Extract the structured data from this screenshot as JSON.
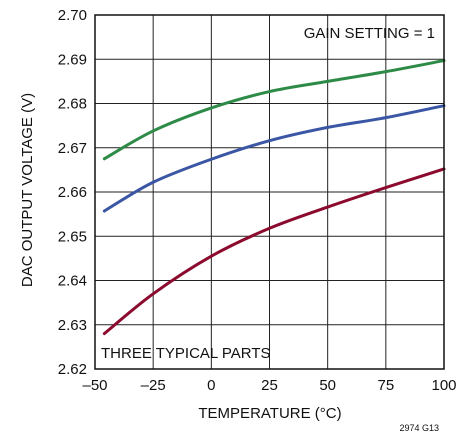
{
  "chart_data": {
    "type": "line",
    "xlabel": "TEMPERATURE (°C)",
    "ylabel": "DAC OUTPUT VOLTAGE (V)",
    "xlim": [
      -50,
      100
    ],
    "ylim": [
      2.62,
      2.7
    ],
    "x_ticks": [
      "–50",
      "–25",
      "0",
      "25",
      "50",
      "75",
      "100"
    ],
    "y_ticks": [
      "2.62",
      "2.63",
      "2.64",
      "2.65",
      "2.66",
      "2.67",
      "2.68",
      "2.69",
      "2.70"
    ],
    "grid": true,
    "annotations": {
      "top_right": "GAIN SETTING = 1",
      "bottom_left": "THREE TYPICAL PARTS"
    },
    "figure_id": "2974 G13",
    "series": [
      {
        "color": "#2e8b47",
        "x": [
          -46,
          -25,
          0,
          25,
          50,
          75,
          100
        ],
        "y": [
          2.6675,
          2.6738,
          2.679,
          2.6827,
          2.685,
          2.6872,
          2.6897
        ]
      },
      {
        "color": "#3a56a4",
        "x": [
          -46,
          -25,
          0,
          25,
          50,
          75,
          100
        ],
        "y": [
          2.6557,
          2.6622,
          2.6674,
          2.6716,
          2.6746,
          2.6768,
          2.6795
        ]
      },
      {
        "color": "#8b0a2e",
        "x": [
          -46,
          -25,
          0,
          25,
          50,
          75,
          100
        ],
        "y": [
          2.628,
          2.637,
          2.6455,
          2.6518,
          2.6566,
          2.661,
          2.6652
        ]
      }
    ]
  }
}
